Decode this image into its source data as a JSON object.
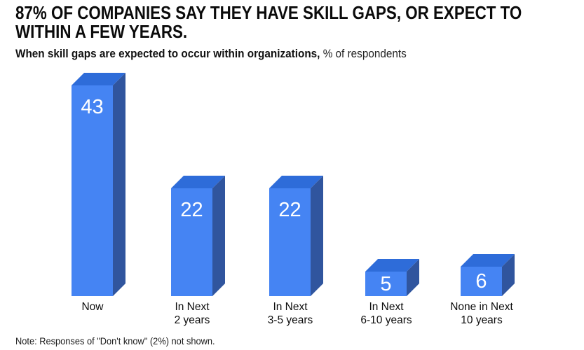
{
  "title": {
    "line1": "87% OF COMPANIES SAY THEY HAVE SKILL GAPS, OR EXPECT TO",
    "line2": "WITHIN A FEW YEARS."
  },
  "subtitle": {
    "label": "When skill gaps are expected to occur within organizations,",
    "unit": " % of respondents"
  },
  "note": "Note: Responses of \"Don't know\" (2%) not shown.",
  "colors": {
    "background": "#FFFFFF",
    "title_text": "#0B0B0B",
    "bar_front": "#4584F3",
    "bar_top": "#2E6CD9",
    "bar_side": "#30559E",
    "value_text": "#FFFFFF",
    "label_text": "#0D0D0D"
  },
  "chart_data": {
    "type": "bar",
    "style": "3d-oblique-columns",
    "title": "87% OF COMPANIES SAY THEY HAVE SKILL GAPS, OR EXPECT TO WITHIN A FEW YEARS.",
    "subtitle": "When skill gaps are expected to occur within organizations, % of respondents",
    "categories": [
      "Now",
      "In Next 2 years",
      "In Next 3-5 years",
      "In Next 6-10 years",
      "None in Next 10 years"
    ],
    "category_lines": [
      [
        "Now"
      ],
      [
        "In Next",
        "2 years"
      ],
      [
        "In Next",
        "3-5 years"
      ],
      [
        "In Next",
        "6-10 years"
      ],
      [
        "None in Next",
        "10 years"
      ]
    ],
    "values": [
      43,
      22,
      22,
      5,
      6
    ],
    "unit": "%",
    "value_labels_shown": true,
    "ylim": [
      0,
      45
    ],
    "grid": false,
    "axes_shown": false,
    "legend": "none",
    "note": "Note: Responses of \"Don't know\" (2%) not shown."
  }
}
